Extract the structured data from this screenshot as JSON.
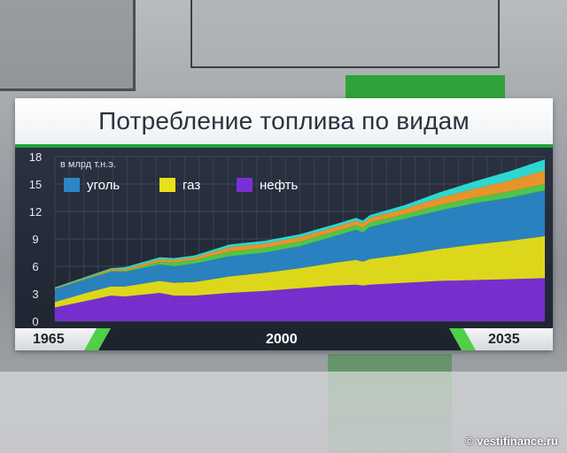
{
  "title": "Потребление топлива по видам",
  "credit": "© vestifinance.ru",
  "chart_data": {
    "type": "area",
    "stacked": true,
    "unit_label": "в млрд т.н.э.",
    "x": [
      1965,
      1970,
      1973,
      1975,
      1980,
      1982,
      1985,
      1990,
      1995,
      2000,
      2005,
      2008,
      2009,
      2010,
      2015,
      2020,
      2025,
      2030,
      2035
    ],
    "x_tick_labels": [
      "1965",
      "2000",
      "2035"
    ],
    "ylim": [
      0,
      18
    ],
    "y_ticks": [
      0,
      3,
      6,
      9,
      12,
      15,
      18
    ],
    "grid": true,
    "legend_placement": "top-left",
    "series": [
      {
        "name": "нефть",
        "color": "#7b2fd6",
        "values": [
          1.5,
          2.3,
          2.8,
          2.7,
          3.1,
          2.8,
          2.8,
          3.1,
          3.3,
          3.6,
          3.9,
          4.0,
          3.9,
          4.0,
          4.2,
          4.4,
          4.5,
          4.6,
          4.7
        ]
      },
      {
        "name": "газ",
        "color": "#e8e01a",
        "values": [
          0.6,
          0.9,
          1.0,
          1.1,
          1.3,
          1.4,
          1.5,
          1.8,
          2.0,
          2.2,
          2.5,
          2.7,
          2.6,
          2.8,
          3.1,
          3.5,
          3.9,
          4.2,
          4.6
        ]
      },
      {
        "name": "уголь",
        "color": "#2a86c6",
        "values": [
          1.4,
          1.5,
          1.6,
          1.6,
          1.8,
          1.8,
          2.0,
          2.2,
          2.2,
          2.4,
          2.9,
          3.3,
          3.2,
          3.5,
          3.9,
          4.2,
          4.5,
          4.7,
          5.0
        ]
      },
      {
        "name": "",
        "color": "#4fcf4a",
        "values": [
          0.0,
          0.1,
          0.1,
          0.1,
          0.3,
          0.4,
          0.4,
          0.5,
          0.5,
          0.5,
          0.5,
          0.5,
          0.5,
          0.5,
          0.5,
          0.6,
          0.6,
          0.7,
          0.7
        ]
      },
      {
        "name": "",
        "color": "#f09a2a",
        "values": [
          0.1,
          0.1,
          0.2,
          0.2,
          0.3,
          0.3,
          0.3,
          0.5,
          0.5,
          0.5,
          0.5,
          0.5,
          0.5,
          0.5,
          0.6,
          0.8,
          1.0,
          1.2,
          1.5
        ]
      },
      {
        "name": "",
        "color": "#2de0d8",
        "values": [
          0.1,
          0.1,
          0.1,
          0.2,
          0.2,
          0.2,
          0.2,
          0.3,
          0.3,
          0.3,
          0.3,
          0.3,
          0.3,
          0.3,
          0.4,
          0.6,
          0.8,
          1.0,
          1.2
        ]
      }
    ],
    "legend": [
      {
        "label": "уголь",
        "color": "#2a86c6"
      },
      {
        "label": "газ",
        "color": "#e8e01a"
      },
      {
        "label": "нефть",
        "color": "#7b2fd6"
      }
    ]
  }
}
